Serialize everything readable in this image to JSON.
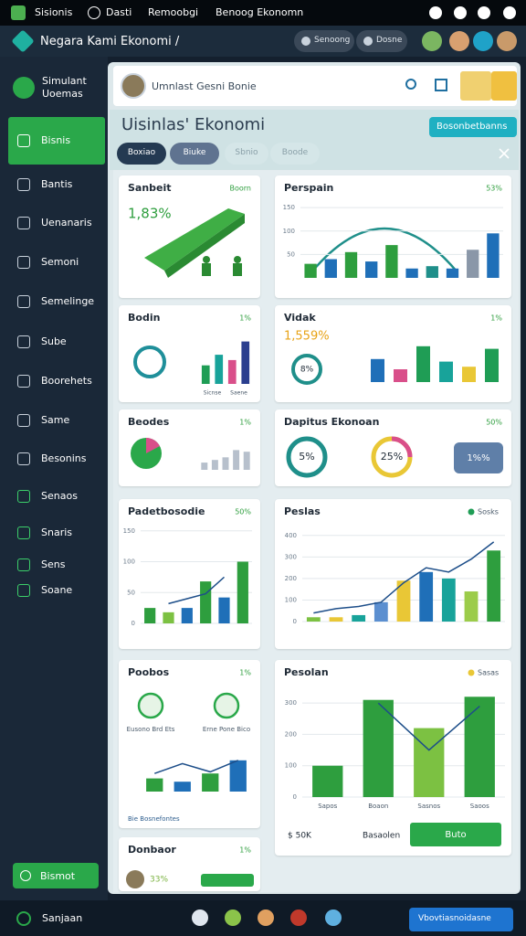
{
  "status_bar": {
    "items": [
      "Sisionis",
      "Dasti",
      "Remoobgi",
      "Benoog Ekonomn"
    ]
  },
  "header": {
    "title": "Negara Kami Ekonomi /",
    "buttons": [
      "Senoong",
      "Dosne"
    ]
  },
  "sidebar": {
    "brand": "Simulant Uoemas",
    "items": [
      "Bisnis",
      "Bantis",
      "Uenanaris",
      "Semoni",
      "Semelinge",
      "Sube",
      "Boorehets",
      "Same",
      "Besonins",
      "Senaos",
      "Snaris",
      "Sens",
      "Soane"
    ],
    "active": 0,
    "button": "Bismot"
  },
  "search": {
    "text": "Umnlast Gesni Bonie"
  },
  "page": {
    "title": "Uisinlas' Ekonomi",
    "action": "Bosonbetbanns",
    "tabs": [
      "Boxiao",
      "Biuke",
      "Sbnio",
      "Boode"
    ],
    "active_tab": 0
  },
  "cards": [
    {
      "title": "Sanbeit",
      "badge": "Boorn",
      "big": "1,83%",
      "big_color": "#2e9e3e"
    },
    {
      "title": "Perspain",
      "badge": "53%",
      "chart": {
        "ylim": [
          0,
          160
        ],
        "yticks": [
          50,
          100,
          150
        ],
        "values": [
          30,
          40,
          55,
          35,
          70,
          20,
          25,
          20,
          60,
          95
        ],
        "colors": [
          "#2e9e3e",
          "#1f6fb8",
          "#2e9e3e",
          "#1f6fb8",
          "#2e9e3e",
          "#1f6fb8",
          "#1f8f8a",
          "#1f6fb8",
          "#8a97a8",
          "#1f6fb8"
        ]
      }
    },
    {
      "title": "Bodin",
      "badge": "1%",
      "captions": [
        "Sicnse",
        "Saene"
      ],
      "chart": {
        "ylim": [
          0,
          100
        ],
        "values": [
          35,
          55,
          45,
          80
        ],
        "colors": [
          "#1f9d55",
          "#18a39a",
          "#d94f8a",
          "#2b3f8f"
        ]
      }
    },
    {
      "title": "Vidak",
      "badge": "1%",
      "big": "1,559%",
      "big_color": "#e8a317",
      "ring": "8%",
      "chart": {
        "ylim": [
          0,
          100
        ],
        "values": [
          45,
          25,
          70,
          40,
          30,
          65
        ],
        "colors": [
          "#1f6fb8",
          "#d94f8a",
          "#1f9d55",
          "#18a39a",
          "#e9c736",
          "#1f9d55"
        ]
      }
    },
    {
      "title": "Beodes",
      "badge": "1%",
      "chart": {
        "ylim": [
          0,
          100
        ],
        "values": [
          22,
          30,
          38,
          60,
          55
        ],
        "colors": [
          "#b7c0cc",
          "#b7c0cc",
          "#b7c0cc",
          "#b7c0cc",
          "#b7c0cc"
        ]
      }
    },
    {
      "title": "Dapitus Ekonoan",
      "badge": "50%",
      "rings": [
        "5%",
        "25%"
      ],
      "pill": "1%%"
    },
    {
      "title": "Padetbosodie",
      "badge": "50%",
      "chart": {
        "ylim": [
          0,
          160
        ],
        "yticks": [
          0,
          50,
          100,
          150
        ],
        "values": [
          25,
          18,
          25,
          68,
          42,
          100
        ],
        "colors": [
          "#2e9e3e",
          "#7cc142",
          "#1f6fb8",
          "#2e9e3e",
          "#1f6fb8",
          "#2e9e3e"
        ],
        "line": [
          null,
          32,
          40,
          48,
          75,
          null
        ]
      }
    },
    {
      "title": "Peslas",
      "legend": "Sosks",
      "legend_color": "#1f9d55",
      "chart": {
        "ylim": [
          0,
          450
        ],
        "yticks": [
          0,
          100,
          200,
          300,
          400
        ],
        "values": [
          20,
          20,
          30,
          90,
          190,
          230,
          200,
          140,
          330
        ],
        "colors": [
          "#7cc142",
          "#e9c736",
          "#18a39a",
          "#5b8fd0",
          "#e9c736",
          "#1f6fb8",
          "#18a39a",
          "#9ccc4a",
          "#2e9e3e"
        ],
        "line": [
          40,
          60,
          70,
          90,
          180,
          250,
          230,
          290,
          370
        ]
      }
    },
    {
      "title": "Poobos",
      "badge": "1%",
      "icons": [
        "Eusono Brd Ets",
        "Erne Pone Bico"
      ],
      "footer": "Bie Bosnefontes",
      "chart": {
        "ylim": [
          0,
          150
        ],
        "values": [
          40,
          30,
          55,
          95
        ],
        "colors": [
          "#2e9e3e",
          "#1f6fb8",
          "#2e9e3e",
          "#1f6fb8"
        ],
        "line": [
          55,
          85,
          60,
          95
        ]
      }
    },
    {
      "title": "Pesolan",
      "legend": "Sasas",
      "legend_color": "#e9c736",
      "footer": [
        "$ 50K",
        "Basaolen"
      ],
      "button": "Buto",
      "chart": {
        "ylim": [
          0,
          350
        ],
        "yticks": [
          0,
          100,
          200,
          300
        ],
        "values": [
          100,
          310,
          220,
          320
        ],
        "colors": [
          "#2e9e3e",
          "#2e9e3e",
          "#7cc142",
          "#2e9e3e"
        ],
        "categories": [
          "Sapos",
          "Boaon",
          "Sasnos",
          "Saoos"
        ],
        "line": [
          null,
          300,
          150,
          290
        ]
      }
    },
    {
      "title": "Donbaor",
      "badge": "1%",
      "avatar_text": "33%"
    }
  ],
  "bottom_bar": {
    "label": "Sanjaan",
    "button": "Vbovtiasnoidasne"
  }
}
